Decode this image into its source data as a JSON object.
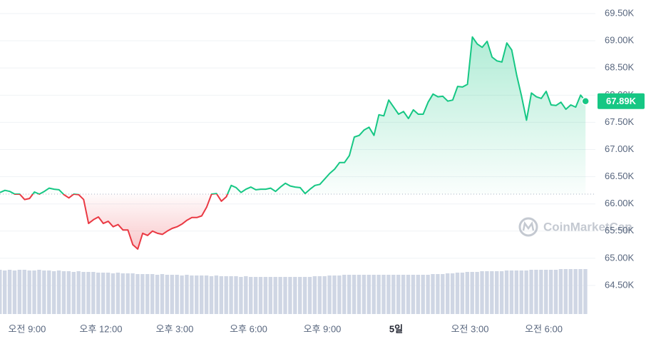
{
  "chart_data": {
    "type": "line",
    "x": [
      7.9,
      8.1,
      8.3,
      8.5,
      8.7,
      8.9,
      9.1,
      9.3,
      9.5,
      9.7,
      9.9,
      10.1,
      10.3,
      10.5,
      10.7,
      10.9,
      11.1,
      11.3,
      11.5,
      11.7,
      11.9,
      12.1,
      12.3,
      12.5,
      12.7,
      12.9,
      13.1,
      13.3,
      13.5,
      13.7,
      13.9,
      14.1,
      14.3,
      14.5,
      14.7,
      14.9,
      15.1,
      15.3,
      15.5,
      15.7,
      15.9,
      16.1,
      16.3,
      16.5,
      16.7,
      16.9,
      17.1,
      17.3,
      17.5,
      17.7,
      17.9,
      18.1,
      18.3,
      18.5,
      18.7,
      18.9,
      19.1,
      19.3,
      19.5,
      19.7,
      19.9,
      20.1,
      20.3,
      20.5,
      20.7,
      20.9,
      21.1,
      21.3,
      21.5,
      21.7,
      21.9,
      22.1,
      22.3,
      22.5,
      22.7,
      22.9,
      23.1,
      23.3,
      23.5,
      23.7,
      23.9,
      24.1,
      24.3,
      24.5,
      24.7,
      24.9,
      25.1,
      25.3,
      25.5,
      25.7,
      25.9,
      26.1,
      26.3,
      26.5,
      26.7,
      26.9,
      27.1,
      27.3,
      27.5,
      27.7,
      27.9,
      28.1,
      28.3,
      28.5,
      28.7,
      28.9,
      29.1,
      29.3,
      29.5,
      29.7,
      29.9,
      30.1,
      30.3,
      30.5,
      30.7,
      30.9,
      31.1,
      31.3,
      31.5,
      31.7
    ],
    "series": [
      {
        "values": [
          66210,
          66250,
          66230,
          66180,
          66180,
          66080,
          66100,
          66220,
          66180,
          66230,
          66290,
          66270,
          66260,
          66170,
          66110,
          66180,
          66170,
          66080,
          65640,
          65710,
          65760,
          65640,
          65680,
          65580,
          65620,
          65520,
          65520,
          65250,
          65170,
          65460,
          65420,
          65500,
          65460,
          65440,
          65500,
          65550,
          65580,
          65630,
          65700,
          65750,
          65750,
          65780,
          65940,
          66180,
          66190,
          66050,
          66130,
          66340,
          66300,
          66210,
          66270,
          66310,
          66260,
          66270,
          66270,
          66290,
          66230,
          66310,
          66380,
          66330,
          66310,
          66300,
          66190,
          66270,
          66340,
          66360,
          66460,
          66560,
          66640,
          66760,
          66760,
          66890,
          67230,
          67260,
          67360,
          67410,
          67260,
          67640,
          67620,
          67910,
          67780,
          67650,
          67700,
          67570,
          67730,
          67650,
          67650,
          67870,
          68020,
          67970,
          67980,
          67890,
          67910,
          68160,
          68150,
          68200,
          69070,
          68940,
          68880,
          68990,
          68700,
          68630,
          68610,
          68960,
          68830,
          68370,
          67980,
          67540,
          68040,
          67970,
          67940,
          68070,
          67820,
          67810,
          67870,
          67740,
          67820,
          67780,
          68000,
          67890
        ],
        "up_color": "#16c784",
        "down_color": "#ea3943"
      }
    ],
    "baseline": 66180,
    "last_value_label": "67.89K",
    "volume": [
      62,
      61,
      62,
      61,
      62,
      62,
      61,
      61,
      62,
      61,
      61,
      60,
      61,
      60,
      60,
      59,
      60,
      59,
      59,
      59,
      58,
      58,
      58,
      57,
      58,
      57,
      57,
      57,
      56,
      56,
      56,
      56,
      55,
      56,
      55,
      55,
      55,
      54,
      55,
      54,
      54,
      54,
      54,
      53,
      54,
      53,
      53,
      53,
      53,
      52,
      53,
      52,
      52,
      52,
      52,
      52,
      52,
      52,
      52,
      52,
      52,
      52,
      52,
      52,
      53,
      53,
      53,
      54,
      54,
      54,
      55,
      55,
      55,
      55,
      55,
      55,
      55,
      55,
      55,
      55,
      55,
      55,
      55,
      55,
      55,
      55,
      55,
      55,
      56,
      56,
      56,
      57,
      57,
      58,
      58,
      59,
      59,
      59,
      60,
      60,
      60,
      60,
      60,
      61,
      61,
      61,
      61,
      61,
      62,
      62,
      62,
      62,
      62,
      62,
      63,
      63,
      63,
      63,
      63,
      63
    ],
    "volume_ylim": [
      0,
      63
    ],
    "volume_color": "#cfd6e4",
    "xlim": [
      7.9,
      32.1
    ],
    "xticks": [
      {
        "value": 9,
        "label": "오전 9:00"
      },
      {
        "value": 12,
        "label": "오후 12:00"
      },
      {
        "value": 15,
        "label": "오후 3:00"
      },
      {
        "value": 18,
        "label": "오후 6:00"
      },
      {
        "value": 21,
        "label": "오후 9:00"
      },
      {
        "value": 24,
        "label": "5일"
      },
      {
        "value": 27,
        "label": "오전 3:00"
      },
      {
        "value": 30,
        "label": "오전 6:00"
      }
    ],
    "ylim": [
      63975,
      69750
    ],
    "yticks": [
      {
        "value": 64500,
        "label": "64.50K"
      },
      {
        "value": 65000,
        "label": "65.00K"
      },
      {
        "value": 65500,
        "label": "65.50K"
      },
      {
        "value": 66000,
        "label": "66.00K"
      },
      {
        "value": 66500,
        "label": "66.50K"
      },
      {
        "value": 67000,
        "label": "67.00K"
      },
      {
        "value": 67500,
        "label": "67.50K"
      },
      {
        "value": 68000,
        "label": "68.00K"
      },
      {
        "value": 68500,
        "label": "68.50K"
      },
      {
        "value": 69000,
        "label": "69.00K"
      },
      {
        "value": 69500,
        "label": "69.50K"
      }
    ],
    "grid": true,
    "watermark": "CoinMarketCap"
  }
}
